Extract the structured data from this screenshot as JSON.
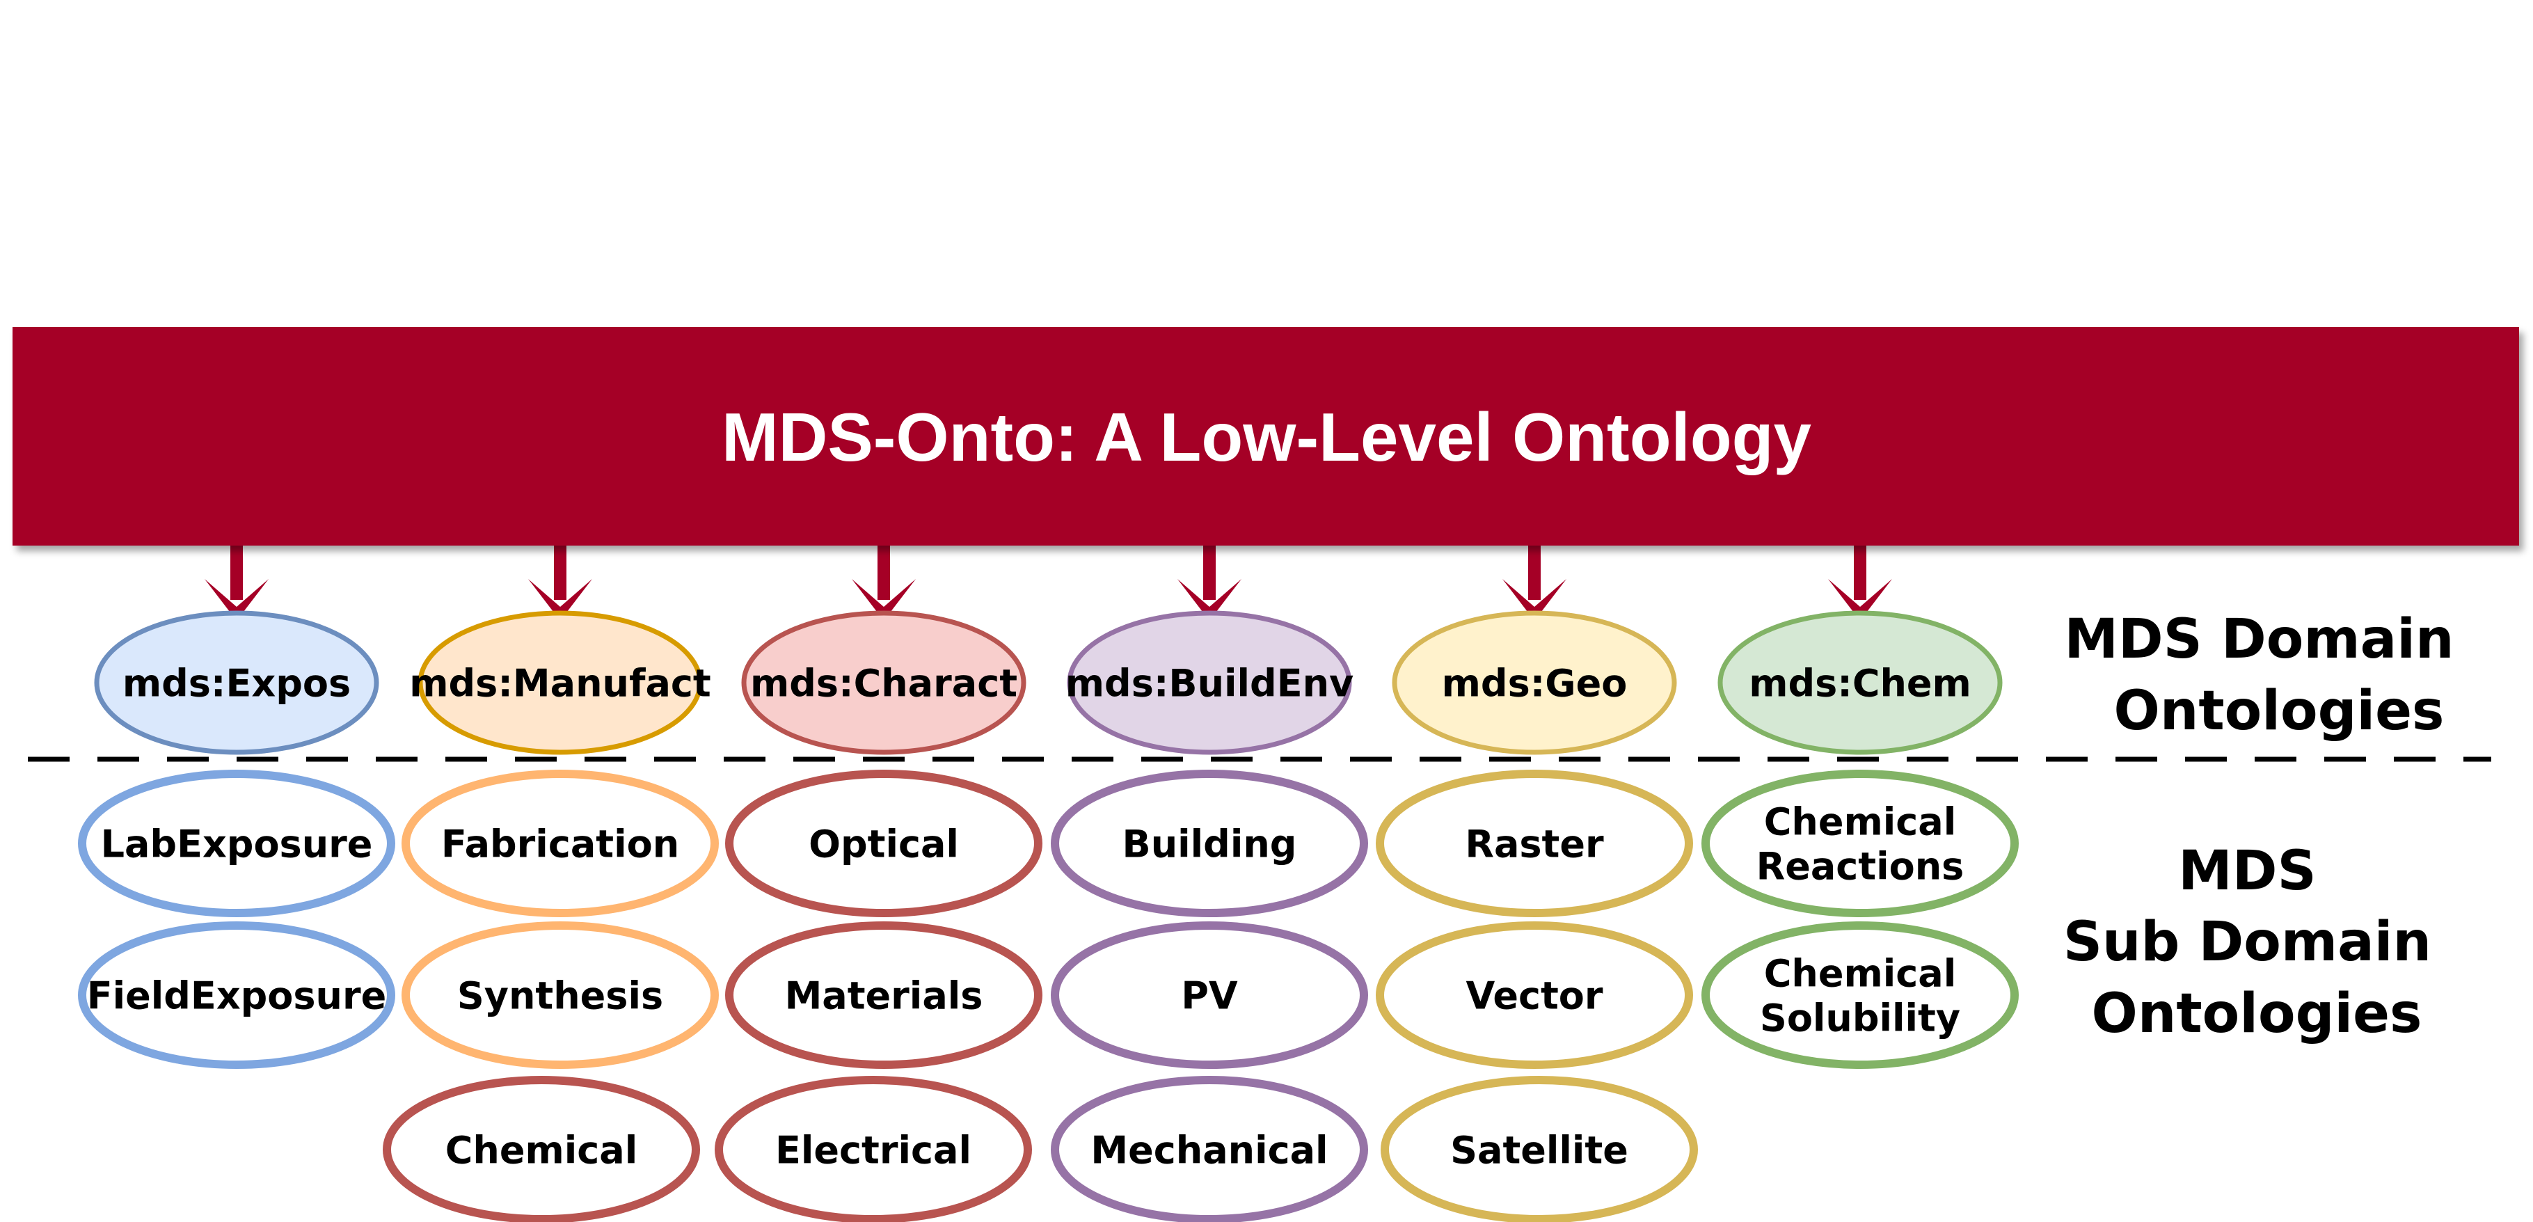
{
  "banner": {
    "title": "MDS-Onto: A Low-Level Ontology",
    "color": "#A50026"
  },
  "side_labels": {
    "domain": [
      "MDS Domain",
      "Ontologies"
    ],
    "subdomain": [
      "MDS",
      "Sub Domain",
      "Ontologies"
    ]
  },
  "domains": [
    {
      "label": "mds:Expos",
      "fill": "#DAE8FC",
      "stroke": "#6C8EBF",
      "sub_stroke": "#7EA6E0",
      "subs": [
        [
          "LabExposure"
        ],
        [
          "FieldExposure"
        ]
      ]
    },
    {
      "label": "mds:Manufact",
      "fill": "#FFE6CC",
      "stroke": "#D79B00",
      "sub_stroke": "#FFB570",
      "subs": [
        [
          "Fabrication"
        ],
        [
          "Synthesis"
        ]
      ]
    },
    {
      "label": "mds:Charact",
      "fill": "#F8CECC",
      "stroke": "#B85450",
      "sub_stroke": "#B85450",
      "subs": [
        [
          "Optical"
        ],
        [
          "Materials"
        ],
        [
          "Electrical"
        ]
      ]
    },
    {
      "label": "mds:BuildEnv",
      "fill": "#E1D5E7",
      "stroke": "#9673A6",
      "sub_stroke": "#9673A6",
      "subs": [
        [
          "Building"
        ],
        [
          "PV"
        ],
        [
          "Mechanical"
        ]
      ]
    },
    {
      "label": "mds:Geo",
      "fill": "#FFF2CC",
      "stroke": "#D6B656",
      "sub_stroke": "#D6B656",
      "subs": [
        [
          "Raster"
        ],
        [
          "Vector"
        ],
        [
          "Satellite"
        ]
      ]
    },
    {
      "label": "mds:Chem",
      "fill": "#D5E8D4",
      "stroke": "#82B366",
      "sub_stroke": "#82B366",
      "subs": [
        [
          "Chemical",
          "Reactions"
        ],
        [
          "Chemical",
          "Solubility"
        ]
      ]
    }
  ],
  "extra_nodes": [
    {
      "label": [
        "Chemical"
      ],
      "stroke": "#B85450"
    }
  ]
}
